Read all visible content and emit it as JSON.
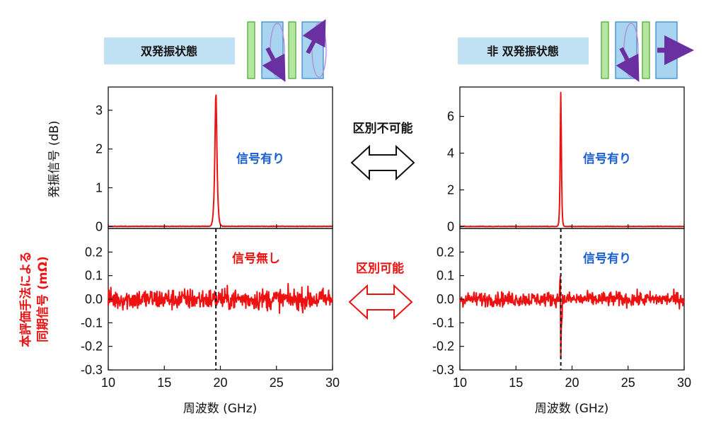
{
  "colors": {
    "signal": "#ee1111",
    "blue_text": "#1a5fd0",
    "red_text": "#ee1111",
    "state_box": "#bfe1f3",
    "layer_green": "#b6e6a0",
    "layer_blue": "#a8d4f2",
    "arrow_purple": "#6a2fa0",
    "orbit": "#b48fd6"
  },
  "states": {
    "left": {
      "label": "双発振状態"
    },
    "right": {
      "label": "非 双発振状態"
    }
  },
  "annotations": {
    "indistinguishable": "区別不可能",
    "distinguishable": "区別可能",
    "signal_present_tl": "信号有り",
    "signal_present_tr": "信号有り",
    "signal_absent_bl": "信号無し",
    "signal_present_br": "信号有り"
  },
  "axes": {
    "x_label_left": "周波数 (GHz)",
    "x_label_right": "周波数 (GHz)",
    "y_label_top": "発振信号 (dB)",
    "y_label_bottom_line1": "本評価手法による",
    "y_label_bottom_line2": "同期信号 (mΩ)"
  },
  "chart_data": [
    {
      "id": "top-left",
      "type": "line",
      "xlim": [
        10,
        30
      ],
      "ylim": [
        -0.05,
        3.6
      ],
      "yticks": [
        0,
        1,
        2,
        3
      ],
      "ytick_labels": [
        "0",
        "1",
        "2",
        "3"
      ],
      "peak_center": 19.6,
      "peak_width": 0.18,
      "peak_height": 3.45,
      "noise_amp": 0.02,
      "grid": false
    },
    {
      "id": "top-right",
      "type": "line",
      "xlim": [
        10,
        30
      ],
      "ylim": [
        -0.1,
        7.6
      ],
      "yticks": [
        0,
        2,
        4,
        6
      ],
      "ytick_labels": [
        "0",
        "2",
        "4",
        "6"
      ],
      "peak_center": 19.0,
      "peak_width": 0.1,
      "peak_height": 7.3,
      "noise_amp": 0.04,
      "grid": false
    },
    {
      "id": "bottom-left",
      "type": "line",
      "xlim": [
        10,
        30
      ],
      "ylim": [
        -0.3,
        0.3
      ],
      "yticks": [
        -0.3,
        -0.2,
        -0.1,
        0.0,
        0.1,
        0.2
      ],
      "ytick_labels": [
        "-0.3",
        "-0.2",
        "-0.1",
        "0.0",
        "0.1",
        "0.2"
      ],
      "xticks": [
        10,
        15,
        20,
        25,
        30
      ],
      "xtick_labels": [
        "10",
        "15",
        "20",
        "25",
        "30"
      ],
      "noise_amp": 0.045,
      "dispersive": false,
      "marker_x": 19.6,
      "grid": false
    },
    {
      "id": "bottom-right",
      "type": "line",
      "xlim": [
        10,
        30
      ],
      "ylim": [
        -0.3,
        0.3
      ],
      "yticks": [
        -0.3,
        -0.2,
        -0.1,
        0.0,
        0.1,
        0.2
      ],
      "ytick_labels": [
        "-0.3",
        "-0.2",
        "-0.1",
        "0.0",
        "0.1",
        "0.2"
      ],
      "xticks": [
        10,
        15,
        20,
        25,
        30
      ],
      "xtick_labels": [
        "10",
        "15",
        "20",
        "25",
        "30"
      ],
      "noise_amp": 0.03,
      "dispersive": true,
      "disp_center": 19.0,
      "disp_pos": 0.19,
      "disp_neg": -0.23,
      "marker_x": 19.0,
      "grid": false
    }
  ]
}
